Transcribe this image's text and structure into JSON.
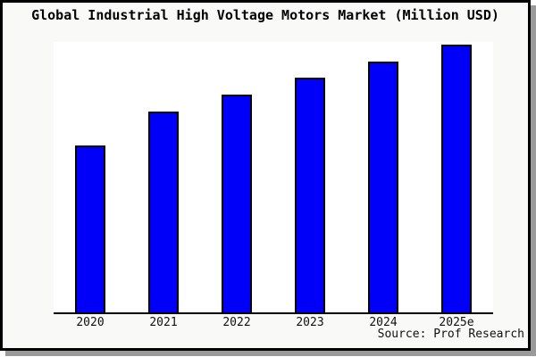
{
  "window": {
    "title": "Global Industrial High Voltage Motors Market (Million USD)"
  },
  "chart_data": {
    "type": "bar",
    "title": "Global Industrial High Voltage Motors Market (Million USD)",
    "categories": [
      "2020",
      "2021",
      "2022",
      "2023",
      "2024",
      "2025e"
    ],
    "values": [
      62.3,
      75.0,
      81.3,
      87.7,
      93.7,
      100.0
    ],
    "value_note": "no y-axis or data labels shown; values estimated from bar heights relative to 2025e = 100",
    "xlabel": "",
    "ylabel": "",
    "ylim": [
      0,
      101
    ],
    "grid": false,
    "legend": false,
    "bar_color": "#0000fa",
    "bar_border_color": "#000000",
    "source_note": "Source: Prof Research"
  },
  "colors": {
    "frame_background": "#f9f9f7",
    "plot_background": "#ffffff",
    "frame_border": "#000000",
    "shadow": "#9a9a9a",
    "text": "#000000"
  }
}
